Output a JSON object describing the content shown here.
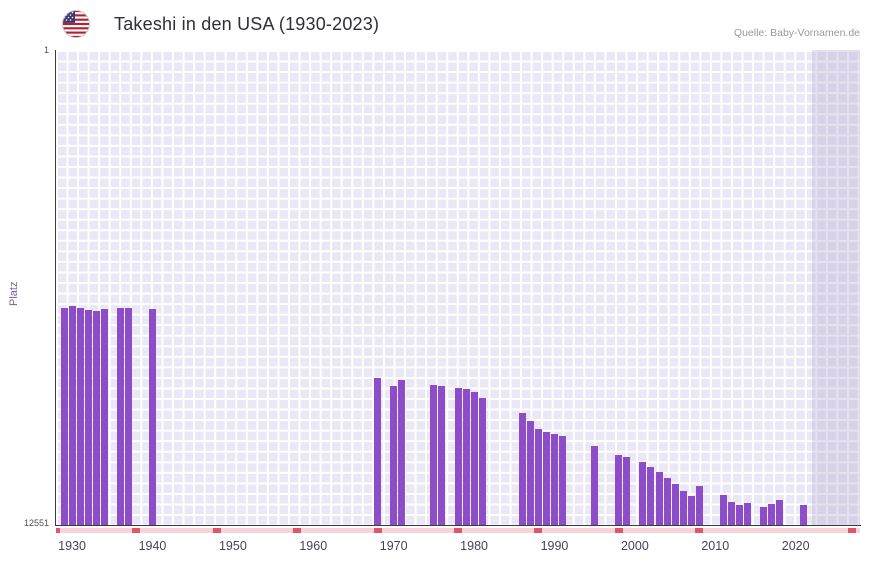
{
  "header": {
    "title": "Takeshi in den USA (1930-2023)",
    "source": "Quelle: Baby-Vornamen.de",
    "flag_icon": "us-flag-icon"
  },
  "chart": {
    "y_axis_title": "Platz",
    "y_top_label": "1",
    "y_bottom_label": "12551"
  },
  "colors": {
    "bar": "#8d4cc8",
    "plot_background": "#ebe8f6",
    "grid_line": "#ffffff",
    "axis": "#3b3b3b",
    "baseline_strip": "#f6d3da",
    "baseline_mark": "#e15666",
    "recent_band": "rgba(168,158,200,0.30)"
  },
  "chart_data": {
    "type": "bar",
    "title": "Takeshi in den USA (1930-2023)",
    "xlabel": "",
    "ylabel": "Platz",
    "y_scale": "log10-inverted",
    "ylim_top_rank": 1,
    "ylim_bottom_rank": 12551,
    "x_range_years": [
      1928,
      2028
    ],
    "x_tick_years": [
      1930,
      1940,
      1950,
      1960,
      1970,
      1980,
      1990,
      2000,
      2010,
      2020
    ],
    "baseline_mark_years": [
      1928,
      1938,
      1948,
      1958,
      1968,
      1978,
      1988,
      1998,
      2008,
      2027
    ],
    "highlight_band_from_year": 2022,
    "legend": "none",
    "grid": true,
    "points": [
      {
        "year": 1929,
        "rank": 170
      },
      {
        "year": 1930,
        "rank": 163
      },
      {
        "year": 1931,
        "rank": 168
      },
      {
        "year": 1932,
        "rank": 175
      },
      {
        "year": 1933,
        "rank": 180
      },
      {
        "year": 1934,
        "rank": 172
      },
      {
        "year": 1936,
        "rank": 168
      },
      {
        "year": 1937,
        "rank": 170
      },
      {
        "year": 1940,
        "rank": 172
      },
      {
        "year": 1968,
        "rank": 680
      },
      {
        "year": 1970,
        "rank": 790
      },
      {
        "year": 1971,
        "rank": 700
      },
      {
        "year": 1975,
        "rank": 780
      },
      {
        "year": 1976,
        "rank": 800
      },
      {
        "year": 1978,
        "rank": 820
      },
      {
        "year": 1979,
        "rank": 850
      },
      {
        "year": 1980,
        "rank": 900
      },
      {
        "year": 1981,
        "rank": 1010
      },
      {
        "year": 1986,
        "rank": 1360
      },
      {
        "year": 1987,
        "rank": 1590
      },
      {
        "year": 1988,
        "rank": 1850
      },
      {
        "year": 1989,
        "rank": 1960
      },
      {
        "year": 1990,
        "rank": 2040
      },
      {
        "year": 1991,
        "rank": 2160
      },
      {
        "year": 1995,
        "rank": 2600
      },
      {
        "year": 1998,
        "rank": 3150
      },
      {
        "year": 1999,
        "rank": 3250
      },
      {
        "year": 2001,
        "rank": 3600
      },
      {
        "year": 2002,
        "rank": 4000
      },
      {
        "year": 2003,
        "rank": 4400
      },
      {
        "year": 2004,
        "rank": 4900
      },
      {
        "year": 2005,
        "rank": 5600
      },
      {
        "year": 2006,
        "rank": 6400
      },
      {
        "year": 2007,
        "rank": 7100
      },
      {
        "year": 2008,
        "rank": 5800
      },
      {
        "year": 2011,
        "rank": 6900
      },
      {
        "year": 2012,
        "rank": 8000
      },
      {
        "year": 2013,
        "rank": 8400
      },
      {
        "year": 2014,
        "rank": 8100
      },
      {
        "year": 2016,
        "rank": 8800
      },
      {
        "year": 2017,
        "rank": 8200
      },
      {
        "year": 2018,
        "rank": 7700
      },
      {
        "year": 2021,
        "rank": 8400
      }
    ]
  }
}
